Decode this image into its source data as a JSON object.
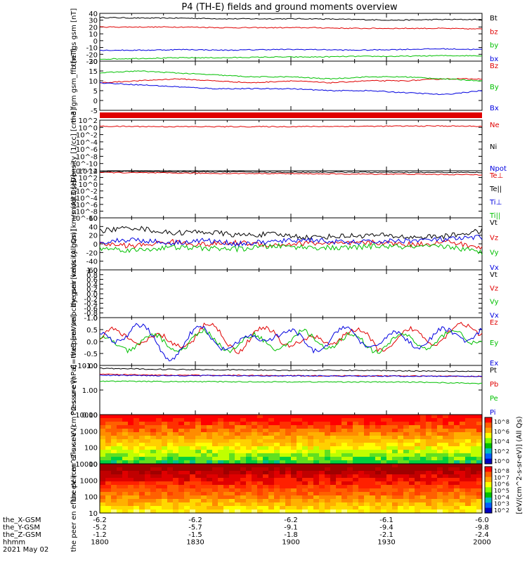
{
  "title": "P4 (TH-E) fields and ground moments overview",
  "colors": {
    "black": "#000000",
    "red": "#e00000",
    "green": "#00c000",
    "blue": "#0000e0"
  },
  "footer": {
    "row_labels": [
      "the_X-GSM",
      "the_Y-GSM",
      "the_Z-GSM",
      "hhmm",
      "2021 May 02"
    ],
    "columns": [
      [
        "-6.2",
        "-5.2",
        "-1.2",
        "1800"
      ],
      [
        "-6.2",
        "-5.7",
        "-1.5",
        "1830"
      ],
      [
        "-6.2",
        "-9.1",
        "-1.8",
        "1900"
      ],
      [
        "-6.1",
        "-9.4",
        "-2.1",
        "1930"
      ],
      [
        "-6.0",
        "-9.8",
        "-2.4",
        "2000"
      ]
    ]
  },
  "colorbar": {
    "label": "[eV/(cm^2-s-sr-eV)] (All Qs)",
    "ticks_top": [
      "10^8",
      "10^6",
      "10^4",
      "10^2",
      "10^0"
    ],
    "ticks_bottom": [
      "10^8",
      "10^7",
      "10^6",
      "10^5",
      "10^4",
      "10^3",
      "10^2"
    ]
  },
  "chart_data": [
    {
      "type": "line",
      "ylabel": "the fgs gsm [nT]",
      "yticks": [
        "40",
        "30",
        "20",
        "10",
        "0",
        "-10",
        "-20",
        "-30"
      ],
      "ylim": [
        -30,
        40
      ],
      "legend": [
        "Bt",
        "bz",
        "by",
        "bx"
      ],
      "series": [
        {
          "name": "Bt",
          "color": "red_none",
          "values": [
            34,
            33,
            33,
            32,
            32,
            32,
            31,
            30,
            31,
            31
          ]
        },
        {
          "name": "bz",
          "values": [
            20,
            20,
            20,
            19,
            19,
            19,
            18,
            18,
            18,
            17
          ]
        },
        {
          "name": "by",
          "values": [
            -27,
            -26,
            -25,
            -25,
            -24,
            -24,
            -23,
            -23,
            -22,
            -22
          ]
        },
        {
          "name": "bx",
          "values": [
            -14,
            -14,
            -13,
            -14,
            -13,
            -13,
            -14,
            -13,
            -12,
            -13
          ]
        }
      ]
    },
    {
      "type": "line",
      "ylabel": "the fgm gsm_ffb [nT]",
      "yticks": [
        "20",
        "15",
        "10",
        "5",
        "0",
        "-5"
      ],
      "ylim": [
        -5,
        20
      ],
      "legend": [
        "Bz",
        "By",
        "Bx"
      ],
      "series": [
        {
          "name": "Bz",
          "values": [
            9,
            10,
            11,
            10,
            9,
            10,
            9,
            10,
            10,
            11,
            11
          ]
        },
        {
          "name": "By",
          "values": [
            14,
            15,
            14,
            13,
            12,
            12,
            11,
            12,
            12,
            11,
            10
          ]
        },
        {
          "name": "Bx",
          "values": [
            9,
            8,
            7,
            6,
            6,
            6,
            5,
            5,
            4,
            3,
            5
          ]
        }
      ]
    },
    {
      "type": "line",
      "ylabel": "Density [1/cc] [cm-3]",
      "yticks": [
        "10^2",
        "10^0",
        "10^-2",
        "10^-4",
        "10^-6",
        "10^-8",
        "10^-10",
        "10^-12"
      ],
      "ylim": [
        -12,
        2
      ],
      "scale": "log",
      "legend": [
        "Ne",
        "Ni",
        "Npot"
      ],
      "series": [
        {
          "name": "Ne",
          "values": [
            0.3,
            0.25,
            0.2,
            0.2,
            0.2,
            0.25,
            0.3,
            0.35,
            0.4,
            0.3
          ]
        }
      ]
    },
    {
      "type": "line",
      "ylabel": "moqt3 [eV]",
      "yticks": [
        "10^4",
        "10^2",
        "10^0",
        "10^-2",
        "10^-4",
        "10^-6",
        "10^-8",
        "10^-10"
      ],
      "ylim": [
        -10,
        4
      ],
      "scale": "log",
      "legend": [
        "Te⊥",
        "Te||",
        "Ti⊥",
        "Ti||"
      ],
      "series": [
        {
          "name": "Te⊥",
          "values": [
            3.5,
            3.4,
            3.3,
            3.2,
            3.2,
            3.1,
            3.0,
            3.0,
            2.9,
            2.8
          ]
        },
        {
          "name": "Te||",
          "values": [
            3.8,
            3.8,
            3.7,
            3.7,
            3.6,
            3.6,
            3.6,
            3.5,
            3.5,
            3.5
          ]
        }
      ]
    },
    {
      "type": "line",
      "ylabel": "the peir velocity gsm [km/s (All Qs)]",
      "yticks": [
        "60",
        "40",
        "20",
        "0",
        "-20",
        "-40",
        "-60"
      ],
      "ylim": [
        -60,
        60
      ],
      "legend": [
        "Vt",
        "Vz",
        "Vy",
        "Vx"
      ],
      "series": [
        {
          "name": "Vt",
          "values": [
            30,
            38,
            25,
            28,
            20,
            22,
            15,
            18,
            20,
            15,
            18,
            30
          ]
        },
        {
          "name": "Vz",
          "values": [
            0,
            -5,
            5,
            -2,
            3,
            -3,
            2,
            0,
            3,
            -2,
            5,
            -10
          ]
        },
        {
          "name": "Vy",
          "values": [
            -10,
            -15,
            -8,
            -10,
            -12,
            -5,
            -8,
            -10,
            -5,
            -8,
            -6,
            -20
          ]
        },
        {
          "name": "Vx",
          "values": [
            5,
            10,
            2,
            8,
            0,
            5,
            10,
            3,
            5,
            8,
            10,
            15
          ]
        }
      ]
    },
    {
      "type": "line",
      "ylabel": "the peer velocity gsm [km/s (All Qs)]",
      "yticks": [
        "1.0",
        "0.8",
        "0.6",
        "0.4",
        "0.2",
        "0.0",
        "-0.2",
        "-0.4",
        "-0.6",
        "-0.8",
        "-1.0"
      ],
      "ylim": [
        -1,
        1
      ],
      "legend": [
        "Vt",
        "Vz",
        "Vy",
        "Vx"
      ],
      "series": []
    },
    {
      "type": "line",
      "ylabel": "E=-VxB [mV/m]",
      "yticks": [
        "1.0",
        "0.5",
        "0.0",
        "-0.5",
        "-1.0"
      ],
      "ylim": [
        -1,
        1
      ],
      "legend": [
        "Ez",
        "Ey",
        "Ex"
      ],
      "series": [
        {
          "name": "Ez",
          "values": [
            0.1,
            0.3,
            -0.2,
            0.5,
            -0.1,
            0.4,
            -0.2,
            0.4,
            -0.1,
            0.2,
            0.3,
            0.6
          ]
        },
        {
          "name": "Ey",
          "values": [
            -0.2,
            0.0,
            -0.1,
            0.1,
            -0.1,
            0.0,
            0.1,
            0.0,
            -0.1,
            0.0,
            0.1,
            0.3
          ]
        },
        {
          "name": "Ex",
          "values": [
            0.0,
            0.6,
            -0.5,
            0.4,
            -0.3,
            0.5,
            -0.2,
            0.3,
            0.0,
            0.1,
            0.2,
            0.5
          ]
        }
      ]
    },
    {
      "type": "line",
      "ylabel": "Pressure [nPa]",
      "yticks": [
        "10.00",
        "1.00",
        "0.10"
      ],
      "ylim": [
        -1.5,
        1
      ],
      "scale": "log",
      "legend": [
        "Pt",
        "Pb",
        "Pe",
        "Pi"
      ],
      "series": [
        {
          "name": "Pt",
          "values": [
            0.85,
            0.8,
            0.78,
            0.75,
            0.75,
            0.72,
            0.7
          ]
        },
        {
          "name": "Pb",
          "values": [
            0.55,
            0.5,
            0.5,
            0.48,
            0.47,
            0.46,
            0.45
          ]
        },
        {
          "name": "Pe",
          "values": [
            0.2,
            0.18,
            0.17,
            0.16,
            0.16,
            0.15,
            0.08
          ]
        },
        {
          "name": "Pi",
          "values": [
            0.5,
            0.48,
            0.48,
            0.47,
            0.46,
            0.45,
            0.45
          ]
        }
      ]
    },
    {
      "type": "heatmap",
      "ylabel": "the peir en eflux eV (cm^2-s-sr-eV)",
      "yticks": [
        "10000",
        "1000",
        "100",
        "10"
      ],
      "scale": "log"
    },
    {
      "type": "heatmap",
      "ylabel": "the peer en eflux eV (cm^2-s-sr-eV)",
      "yticks": [
        "10000",
        "1000",
        "100",
        "10"
      ],
      "scale": "log"
    }
  ]
}
